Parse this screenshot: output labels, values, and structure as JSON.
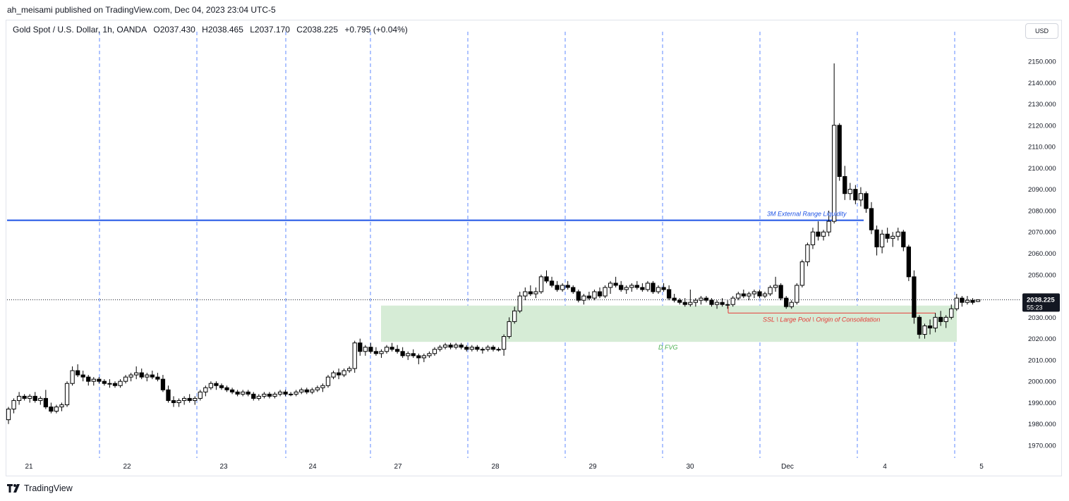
{
  "publisher_line": "ah_meisami published on TradingView.com, Dec 04, 2023 23:04 UTC-5",
  "legend": {
    "symbol": "Gold Spot / U.S. Dollar, 1h, OANDA",
    "open": "O2037.430",
    "high": "H2038.465",
    "low": "L2037.170",
    "close": "C2038.225",
    "change": "+0.795 (+0.04%)"
  },
  "currency_button": "USD",
  "price_label": {
    "value": "2038.225",
    "countdown": "55:23"
  },
  "brand": "TradingView",
  "colors": {
    "up_candle": "#ffffff",
    "down_candle": "#000000",
    "candle_outline": "#000000",
    "liquidity_line": "#1e53e5",
    "ssl_line": "#e53935",
    "fvg_fill": "#d6ecd6",
    "fvg_text": "#4caf50",
    "session_line": "#2962ff"
  },
  "chart_data": {
    "type": "candlestick",
    "ylim": [
      1965,
      2155
    ],
    "y_ticks": [
      1970,
      1980,
      1990,
      2000,
      2010,
      2020,
      2030,
      2040,
      2050,
      2060,
      2070,
      2080,
      2090,
      2100,
      2110,
      2120,
      2130,
      2140,
      2150
    ],
    "y_tick_labels": [
      "1970.000",
      "1980.000",
      "1990.000",
      "2000.000",
      "2010.000",
      "2020.000",
      "2030.000",
      "2040.000",
      "2050.000",
      "2060.000",
      "2070.000",
      "2080.000",
      "2090.000",
      "2100.000",
      "2110.000",
      "2120.000",
      "2130.000",
      "2140.000",
      "2150.000"
    ],
    "x_labels": [
      "21",
      "22",
      "23",
      "24",
      "27",
      "28",
      "29",
      "30",
      "Dec",
      "4",
      "5"
    ],
    "current_price": 2038.225,
    "annotations": {
      "external_liquidity": {
        "text": "3M External Range Liquidity",
        "price": 2075.5
      },
      "ssl": {
        "text": "SSL \\ Large Pool \\ Origin of Consolidation",
        "price": 2032
      },
      "fvg": {
        "text": "D FVG",
        "top": 2035.5,
        "bottom": 2018.5
      }
    },
    "ohlc": [
      [
        1982,
        1988,
        1980,
        1987
      ],
      [
        1987,
        1992,
        1985,
        1991
      ],
      [
        1991,
        1995,
        1989,
        1993
      ],
      [
        1993,
        1994,
        1991,
        1992
      ],
      [
        1992,
        1994,
        1990,
        1993
      ],
      [
        1993,
        1995,
        1990,
        1991
      ],
      [
        1991,
        1993,
        1989,
        1992
      ],
      [
        1992,
        1996,
        1987,
        1988
      ],
      [
        1988,
        1990,
        1985,
        1986
      ],
      [
        1986,
        1989,
        1985,
        1988
      ],
      [
        1988,
        1990,
        1986,
        1989
      ],
      [
        1989,
        2000,
        1988,
        1999
      ],
      [
        1999,
        2007,
        1998,
        2005
      ],
      [
        2005,
        2008,
        2002,
        2003
      ],
      [
        2003,
        2005,
        2000,
        2002
      ],
      [
        2002,
        2003,
        1998,
        2000
      ],
      [
        2000,
        2002,
        1998,
        2001
      ],
      [
        2001,
        2002,
        1999,
        2000
      ],
      [
        2000,
        2001,
        1998,
        1999
      ],
      [
        1999,
        2001,
        1997,
        1999
      ],
      [
        1999,
        2000,
        1997,
        1998
      ],
      [
        1998,
        2001,
        1997,
        2000
      ],
      [
        2000,
        2003,
        1999,
        2002
      ],
      [
        2002,
        2004,
        2000,
        2003
      ],
      [
        2003,
        2007,
        2001,
        2004
      ],
      [
        2004,
        2006,
        2001,
        2002
      ],
      [
        2002,
        2004,
        2000,
        2003
      ],
      [
        2003,
        2005,
        2001,
        2002
      ],
      [
        2002,
        2004,
        2000,
        2001
      ],
      [
        2001,
        2003,
        1995,
        1996
      ],
      [
        1996,
        1998,
        1990,
        1991
      ],
      [
        1991,
        1993,
        1988,
        1990
      ],
      [
        1990,
        1992,
        1988,
        1991
      ],
      [
        1991,
        1993,
        1989,
        1992
      ],
      [
        1992,
        1994,
        1990,
        1991
      ],
      [
        1991,
        1993,
        1989,
        1992
      ],
      [
        1992,
        1996,
        1991,
        1995
      ],
      [
        1995,
        1998,
        1993,
        1997
      ],
      [
        1997,
        2000,
        1996,
        1999
      ],
      [
        1999,
        2000,
        1996,
        1998
      ],
      [
        1998,
        1999,
        1996,
        1997
      ],
      [
        1997,
        1998,
        1995,
        1996
      ],
      [
        1996,
        1997,
        1994,
        1995
      ],
      [
        1995,
        1996,
        1993,
        1994
      ],
      [
        1994,
        1996,
        1993,
        1995
      ],
      [
        1995,
        1996,
        1993,
        1994
      ],
      [
        1994,
        1995,
        1991,
        1992
      ],
      [
        1992,
        1994,
        1991,
        1993
      ],
      [
        1993,
        1995,
        1992,
        1994
      ],
      [
        1994,
        1995,
        1992,
        1993
      ],
      [
        1993,
        1995,
        1992,
        1994
      ],
      [
        1994,
        1996,
        1993,
        1995
      ],
      [
        1995,
        1996,
        1993,
        1994
      ],
      [
        1994,
        1995,
        1993,
        1994
      ],
      [
        1994,
        1996,
        1993,
        1995
      ],
      [
        1995,
        1997,
        1994,
        1996
      ],
      [
        1996,
        1997,
        1994,
        1995
      ],
      [
        1995,
        1997,
        1994,
        1996
      ],
      [
        1996,
        1998,
        1995,
        1997
      ],
      [
        1997,
        1999,
        1995,
        1998
      ],
      [
        1998,
        2003,
        1997,
        2002
      ],
      [
        2002,
        2005,
        2001,
        2004
      ],
      [
        2004,
        2006,
        2001,
        2003
      ],
      [
        2003,
        2006,
        2002,
        2005
      ],
      [
        2005,
        2007,
        2004,
        2006
      ],
      [
        2006,
        2019,
        2004,
        2018
      ],
      [
        2018,
        2020,
        2012,
        2014
      ],
      [
        2014,
        2017,
        2012,
        2016
      ],
      [
        2016,
        2018,
        2013,
        2014
      ],
      [
        2014,
        2016,
        2012,
        2013
      ],
      [
        2013,
        2015,
        2011,
        2014
      ],
      [
        2014,
        2017,
        2013,
        2016
      ],
      [
        2016,
        2018,
        2014,
        2015
      ],
      [
        2015,
        2017,
        2013,
        2014
      ],
      [
        2014,
        2016,
        2011,
        2012
      ],
      [
        2012,
        2014,
        2010,
        2013
      ],
      [
        2013,
        2015,
        2011,
        2012
      ],
      [
        2012,
        2013,
        2008,
        2011
      ],
      [
        2011,
        2013,
        2009,
        2012
      ],
      [
        2012,
        2014,
        2011,
        2013
      ],
      [
        2013,
        2016,
        2012,
        2015
      ],
      [
        2015,
        2017,
        2014,
        2016
      ],
      [
        2016,
        2018,
        2015,
        2017
      ],
      [
        2017,
        2018,
        2015,
        2016
      ],
      [
        2016,
        2018,
        2015,
        2017
      ],
      [
        2017,
        2018,
        2015,
        2016
      ],
      [
        2016,
        2017,
        2014,
        2015
      ],
      [
        2015,
        2017,
        2014,
        2016
      ],
      [
        2016,
        2017,
        2014,
        2015
      ],
      [
        2015,
        2016,
        2013,
        2015
      ],
      [
        2015,
        2017,
        2014,
        2016
      ],
      [
        2016,
        2017,
        2014,
        2015
      ],
      [
        2015,
        2016,
        2014,
        2015
      ],
      [
        2015,
        2022,
        2012,
        2021
      ],
      [
        2021,
        2030,
        2020,
        2028
      ],
      [
        2028,
        2035,
        2027,
        2033
      ],
      [
        2033,
        2042,
        2032,
        2040
      ],
      [
        2040,
        2044,
        2038,
        2042
      ],
      [
        2042,
        2045,
        2040,
        2041
      ],
      [
        2041,
        2044,
        2039,
        2042
      ],
      [
        2042,
        2050,
        2041,
        2049
      ],
      [
        2049,
        2052,
        2046,
        2047
      ],
      [
        2047,
        2049,
        2044,
        2045
      ],
      [
        2045,
        2047,
        2042,
        2043
      ],
      [
        2043,
        2046,
        2042,
        2045
      ],
      [
        2045,
        2047,
        2043,
        2044
      ],
      [
        2044,
        2045,
        2041,
        2042
      ],
      [
        2042,
        2043,
        2037,
        2038
      ],
      [
        2038,
        2041,
        2036,
        2040
      ],
      [
        2040,
        2042,
        2038,
        2039
      ],
      [
        2039,
        2043,
        2038,
        2042
      ],
      [
        2042,
        2044,
        2039,
        2040
      ],
      [
        2040,
        2045,
        2039,
        2044
      ],
      [
        2044,
        2047,
        2041,
        2046
      ],
      [
        2046,
        2049,
        2044,
        2045
      ],
      [
        2045,
        2047,
        2042,
        2043
      ],
      [
        2043,
        2045,
        2041,
        2044
      ],
      [
        2044,
        2046,
        2042,
        2045
      ],
      [
        2045,
        2047,
        2043,
        2044
      ],
      [
        2044,
        2046,
        2042,
        2043
      ],
      [
        2043,
        2047,
        2042,
        2046
      ],
      [
        2046,
        2047,
        2041,
        2042
      ],
      [
        2042,
        2045,
        2041,
        2044
      ],
      [
        2044,
        2046,
        2042,
        2043
      ],
      [
        2043,
        2045,
        2038,
        2039
      ],
      [
        2039,
        2041,
        2037,
        2038
      ],
      [
        2038,
        2039,
        2036,
        2037
      ],
      [
        2037,
        2039,
        2035,
        2036
      ],
      [
        2036,
        2043,
        2035,
        2037
      ],
      [
        2037,
        2039,
        2035,
        2038
      ],
      [
        2038,
        2040,
        2036,
        2039
      ],
      [
        2039,
        2040,
        2037,
        2038
      ],
      [
        2038,
        2039,
        2035,
        2036
      ],
      [
        2036,
        2038,
        2034,
        2037
      ],
      [
        2037,
        2039,
        2035,
        2036
      ],
      [
        2036,
        2038,
        2034,
        2036
      ],
      [
        2036,
        2040,
        2035,
        2039
      ],
      [
        2039,
        2042,
        2038,
        2041
      ],
      [
        2041,
        2043,
        2039,
        2040
      ],
      [
        2040,
        2042,
        2038,
        2041
      ],
      [
        2041,
        2043,
        2039,
        2042
      ],
      [
        2042,
        2043,
        2039,
        2040
      ],
      [
        2040,
        2042,
        2039,
        2041
      ],
      [
        2041,
        2045,
        2040,
        2044
      ],
      [
        2044,
        2049,
        2042,
        2045
      ],
      [
        2045,
        2046,
        2038,
        2039
      ],
      [
        2039,
        2040,
        2034,
        2035
      ],
      [
        2035,
        2038,
        2034,
        2037
      ],
      [
        2037,
        2046,
        2036,
        2045
      ],
      [
        2045,
        2057,
        2044,
        2056
      ],
      [
        2056,
        2065,
        2054,
        2064
      ],
      [
        2064,
        2072,
        2062,
        2070
      ],
      [
        2070,
        2075,
        2066,
        2068
      ],
      [
        2068,
        2071,
        2066,
        2070
      ],
      [
        2070,
        2080,
        2068,
        2075
      ],
      [
        2075,
        2149,
        2074,
        2120
      ],
      [
        2120,
        2121,
        2094,
        2096
      ],
      [
        2096,
        2101,
        2085,
        2088
      ],
      [
        2088,
        2093,
        2085,
        2090
      ],
      [
        2090,
        2092,
        2083,
        2085
      ],
      [
        2085,
        2091,
        2082,
        2088
      ],
      [
        2088,
        2089,
        2079,
        2081
      ],
      [
        2081,
        2084,
        2069,
        2071
      ],
      [
        2071,
        2073,
        2059,
        2063
      ],
      [
        2063,
        2071,
        2060,
        2069
      ],
      [
        2069,
        2072,
        2065,
        2067
      ],
      [
        2067,
        2070,
        2063,
        2068
      ],
      [
        2068,
        2072,
        2066,
        2070
      ],
      [
        2070,
        2071,
        2061,
        2063
      ],
      [
        2063,
        2064,
        2047,
        2049
      ],
      [
        2049,
        2052,
        2027,
        2030
      ],
      [
        2030,
        2031,
        2020,
        2022
      ],
      [
        2022,
        2027,
        2020,
        2026
      ],
      [
        2026,
        2029,
        2022,
        2025
      ],
      [
        2025,
        2032,
        2023,
        2030
      ],
      [
        2030,
        2033,
        2026,
        2028
      ],
      [
        2028,
        2031,
        2025,
        2030
      ],
      [
        2030,
        2036,
        2029,
        2034
      ],
      [
        2034,
        2041,
        2033,
        2039
      ],
      [
        2039,
        2040,
        2035,
        2037
      ],
      [
        2037,
        2040,
        2036,
        2038
      ],
      [
        2038,
        2039,
        2036,
        2037
      ],
      [
        2037.43,
        2038.465,
        2037.17,
        2038.225
      ]
    ]
  }
}
